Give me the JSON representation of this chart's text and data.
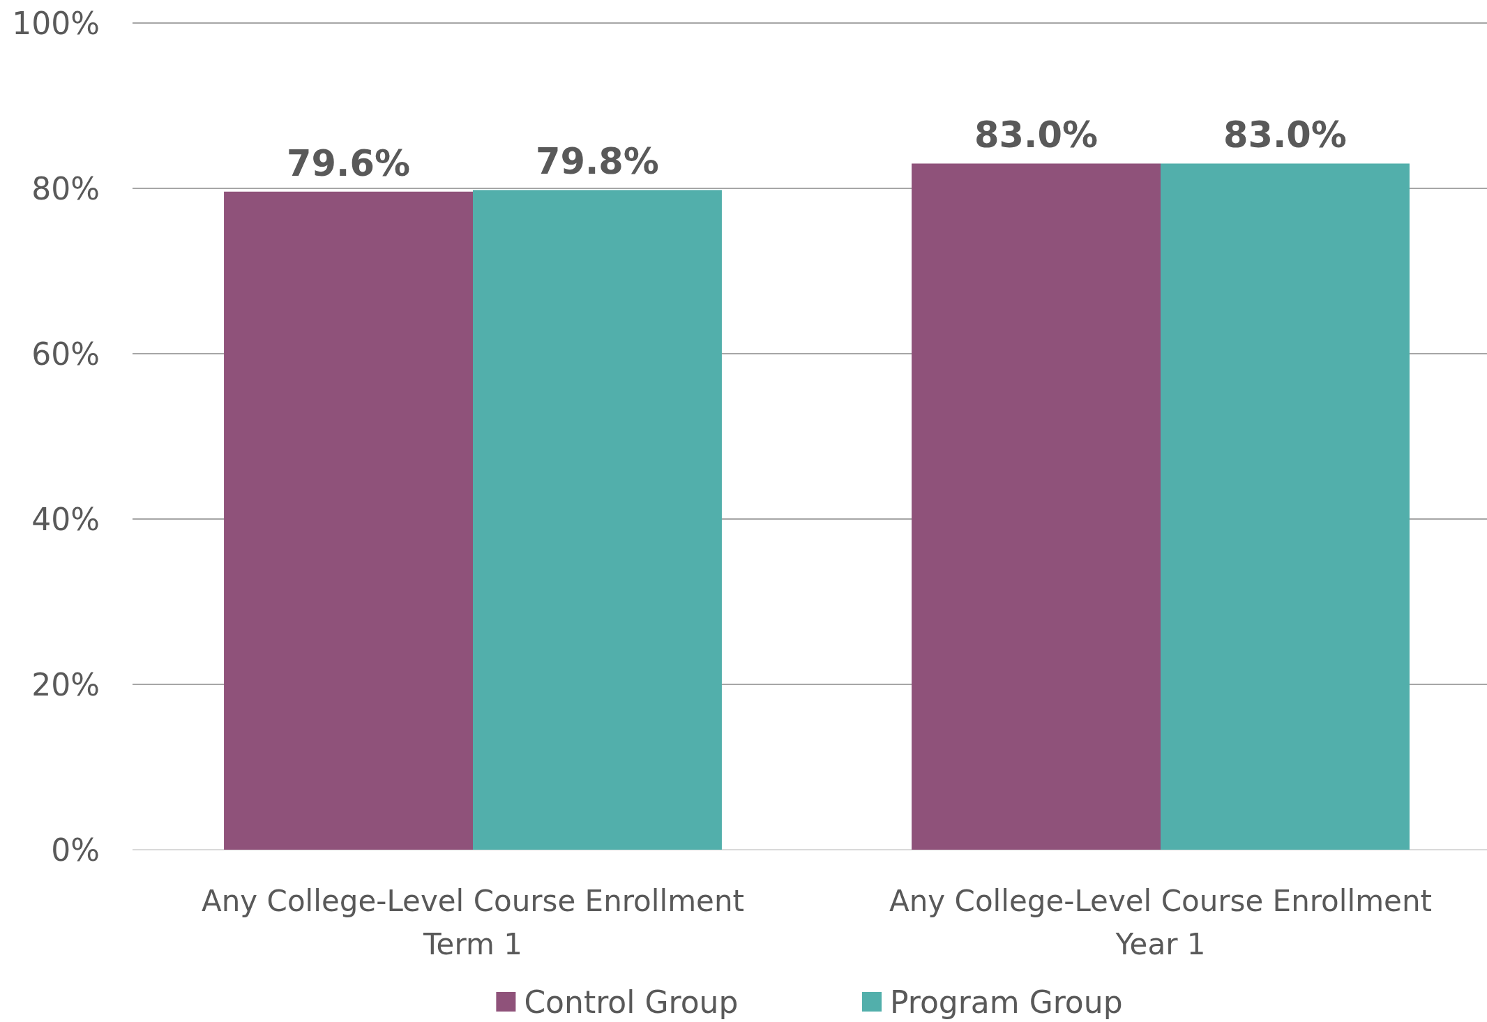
{
  "chart_data": {
    "type": "bar",
    "categories": [
      "Any College-Level Course Enrollment Term 1",
      "Any College-Level Course Enrollment Year 1"
    ],
    "series": [
      {
        "name": "Control Group",
        "color": "#8f527a",
        "values": [
          79.6,
          83.0
        ],
        "value_labels": [
          "79.6%",
          "83.0%"
        ]
      },
      {
        "name": "Program Group",
        "color": "#52afab",
        "values": [
          79.8,
          83.0
        ],
        "value_labels": [
          "79.8%",
          "83.0%"
        ]
      }
    ],
    "ylim": [
      0,
      100
    ],
    "yticks": [
      {
        "value": 0,
        "label": "0%"
      },
      {
        "value": 20,
        "label": "20%"
      },
      {
        "value": 40,
        "label": "40%"
      },
      {
        "value": 60,
        "label": "60%"
      },
      {
        "value": 80,
        "label": "80%"
      },
      {
        "value": 100,
        "label": "100%"
      }
    ],
    "grid": "y",
    "legend": "bottom"
  }
}
